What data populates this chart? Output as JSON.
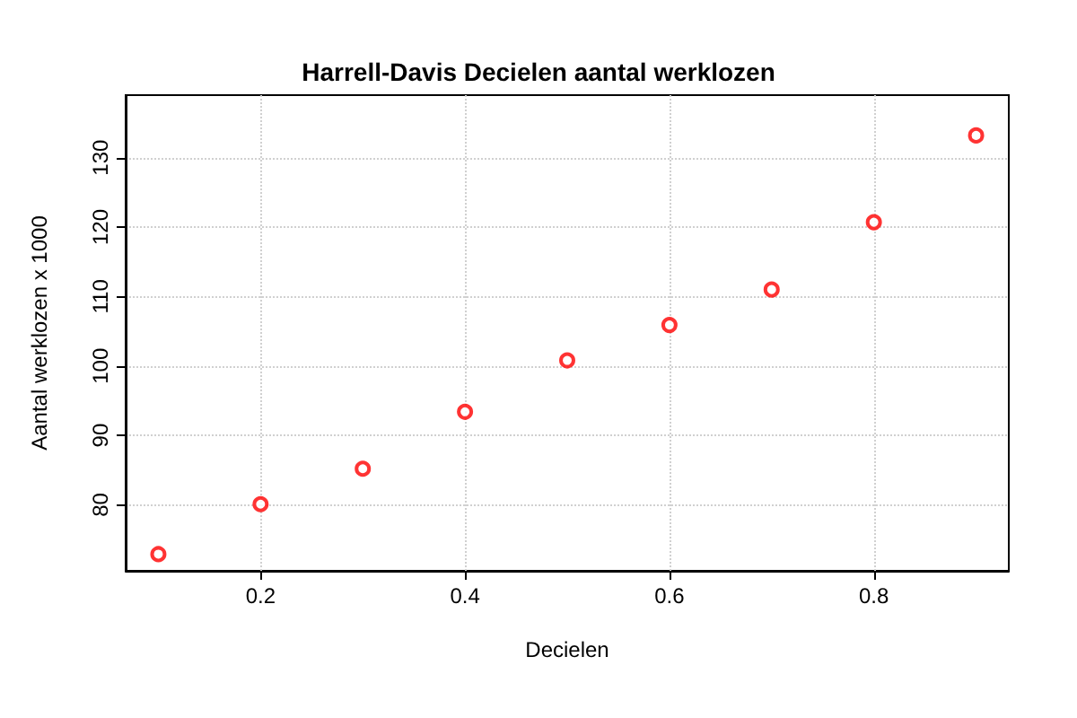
{
  "chart_data": {
    "type": "scatter",
    "title": "Harrell-Davis Decielen aantal werklozen",
    "xlabel": "Decielen",
    "ylabel": "Aantal werklozen x 1000",
    "x": [
      0.1,
      0.2,
      0.3,
      0.4,
      0.5,
      0.6,
      0.7,
      0.8,
      0.9
    ],
    "series": [
      {
        "color": "#ff0000",
        "values": [
          72.9,
          80.1,
          85.2,
          93.4,
          100.8,
          105.9,
          111.0,
          120.7,
          133.2
        ]
      }
    ],
    "xlim": [
      0.068,
      0.932
    ],
    "ylim": [
      70.5,
      139
    ],
    "xticks": [
      0.2,
      0.4,
      0.6,
      0.8
    ],
    "yticks": [
      80,
      90,
      100,
      110,
      120,
      130
    ],
    "grid": true,
    "marker": "circle"
  }
}
